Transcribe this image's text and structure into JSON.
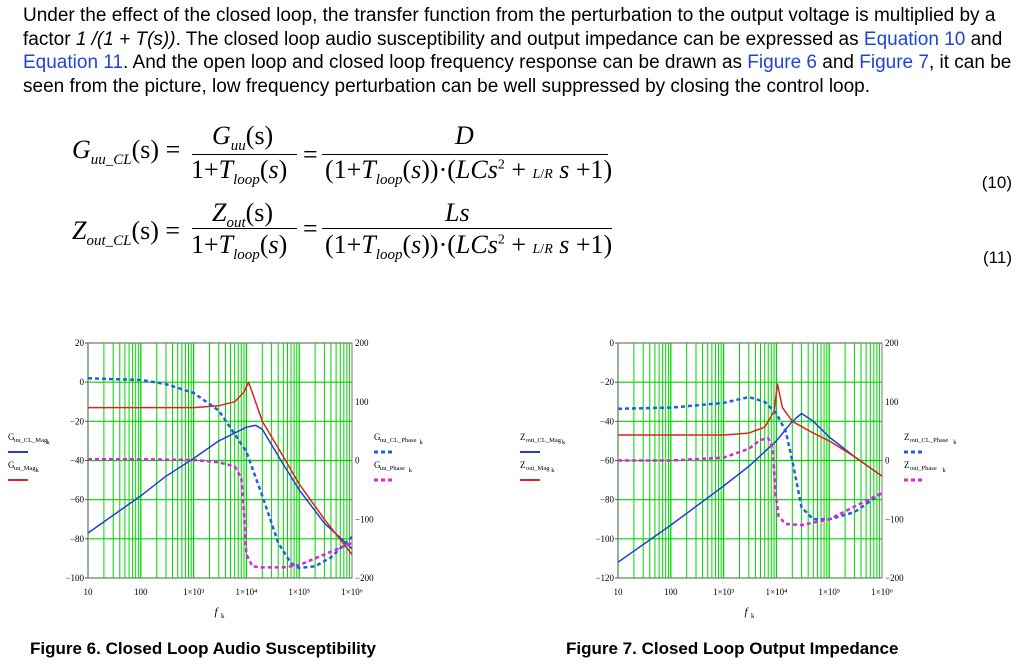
{
  "paragraph": {
    "p1": "Under the effect of the closed loop, the transfer function from the perturbation to the output voltage is multiplied by a factor ",
    "factor": "1 /(1 + T(s))",
    "p2": ". The closed loop audio susceptibility and output impedance can be expressed as ",
    "link_eq10": "Equation 10",
    "p3": " and ",
    "link_eq11": "Equation 11",
    "p4": ". And the open loop and closed loop frequency response can be drawn as ",
    "link_fig6": "Figure 6",
    "p5": " and ",
    "link_fig7": "Figure 7",
    "p6": ", it can be seen from the picture, low frequency perturbation can be well suppressed by closing the control loop."
  },
  "equations": [
    {
      "number": "(10)",
      "lhs": "G",
      "lhs_sub": "uu_CL",
      "arg": "(s) =",
      "num1_main": "G",
      "num1_sub": "uu",
      "num1_arg": "(s)",
      "num2": "D"
    },
    {
      "number": "(11)",
      "lhs": "Z",
      "lhs_sub": "out_CL",
      "arg": "(s) =",
      "num1_main": "Z",
      "num1_sub": "out",
      "num1_arg": "(s)",
      "num2": "Ls"
    }
  ],
  "figures": [
    {
      "caption": "Figure 6. Closed Loop Audio Susceptibility",
      "xlabel": "f",
      "xlabel_sub": "k",
      "left_legend": [
        "G",
        "uu_CL_Mag",
        "k",
        "G",
        "uu_Mag",
        "k"
      ],
      "right_legend": [
        "G",
        "uu_CL_Phase",
        "k",
        "G",
        "uu_Phase",
        "k"
      ],
      "colors": {
        "closed_loop": "#1f3fd6",
        "open_loop": "#e02020",
        "dashed_cl": "#1f5fe0",
        "dashed_ol": "#e020e0",
        "grid": "#00d400"
      }
    },
    {
      "caption": "Figure 7. Closed Loop Output Impedance",
      "xlabel": "f",
      "xlabel_sub": "k",
      "left_legend": [
        "Z",
        "out_CL_Mag",
        "k",
        "Z",
        "out_Mag",
        "k"
      ],
      "right_legend": [
        "Z",
        "out_CL_Phase",
        "k",
        "Z",
        "out_Phase",
        "k"
      ]
    }
  ],
  "chart_data": [
    {
      "type": "line",
      "xscale": "log",
      "xlim": [
        10,
        1000000
      ],
      "x_ticks": [
        "10",
        "100",
        "1×10³",
        "1×10⁴",
        "1×10⁵",
        "1×10⁶"
      ],
      "ylim_left": [
        -100,
        20
      ],
      "y_ticks_left": [
        "20",
        "0",
        "−20",
        "−40",
        "−60",
        "−80",
        "−100"
      ],
      "ylim_right": [
        -200,
        200
      ],
      "y_ticks_right": [
        "200",
        "100",
        "0",
        "−100",
        "−200"
      ],
      "grid": true,
      "series": [
        {
          "name": "Guu_CL_Mag",
          "axis": "left",
          "style": "solid",
          "color": "#1f3fd6",
          "x": [
            10,
            30,
            100,
            300,
            1000,
            3000,
            10000,
            15000,
            20000,
            50000,
            100000,
            300000,
            1000000
          ],
          "y": [
            -77,
            -68,
            -58,
            -48,
            -39,
            -30,
            -23,
            -22,
            -24,
            -42,
            -55,
            -72,
            -85
          ]
        },
        {
          "name": "Guu_Mag",
          "axis": "left",
          "style": "solid",
          "color": "#e02020",
          "x": [
            10,
            100,
            1000,
            3000,
            6000,
            9000,
            11000,
            14000,
            20000,
            50000,
            100000,
            300000,
            1000000
          ],
          "y": [
            -13,
            -13,
            -13,
            -12,
            -10,
            -5,
            0,
            -8,
            -20,
            -38,
            -52,
            -70,
            -88
          ]
        },
        {
          "name": "Guu_CL_Phase",
          "axis": "right",
          "style": "dash",
          "color": "#1f5fe0",
          "x": [
            10,
            100,
            300,
            1000,
            3000,
            6000,
            10000,
            20000,
            40000,
            70000,
            100000,
            200000,
            400000,
            1000000
          ],
          "y": [
            140,
            137,
            130,
            115,
            85,
            45,
            15,
            -60,
            -140,
            -175,
            -183,
            -180,
            -165,
            -130
          ]
        },
        {
          "name": "Guu_Phase",
          "axis": "right",
          "style": "dash",
          "color": "#e020e0",
          "x": [
            10,
            100,
            1000,
            3000,
            6000,
            8000,
            9000,
            10000,
            13000,
            20000,
            50000,
            100000,
            1000000
          ],
          "y": [
            2,
            2,
            1,
            -3,
            -10,
            -30,
            -90,
            -160,
            -180,
            -182,
            -182,
            -178,
            -140
          ]
        }
      ]
    },
    {
      "type": "line",
      "xscale": "log",
      "xlim": [
        10,
        1000000
      ],
      "x_ticks": [
        "10",
        "100",
        "1×10³",
        "1×10⁴",
        "1×10⁵",
        "1×10⁶"
      ],
      "ylim_left": [
        -120,
        0
      ],
      "y_ticks_left": [
        "0",
        "−20",
        "−40",
        "−60",
        "−80",
        "−100",
        "−120"
      ],
      "ylim_right": [
        -200,
        200
      ],
      "y_ticks_right": [
        "200",
        "100",
        "0",
        "−100",
        "−200"
      ],
      "grid": true,
      "series": [
        {
          "name": "Zout_CL_Mag",
          "axis": "left",
          "style": "solid",
          "color": "#1f3fd6",
          "x": [
            10,
            100,
            1000,
            3000,
            10000,
            20000,
            30000,
            50000,
            100000,
            300000,
            1000000
          ],
          "y": [
            -112,
            -93,
            -73,
            -63,
            -50,
            -40,
            -36,
            -40,
            -48,
            -58,
            -68
          ]
        },
        {
          "name": "Zout_Mag",
          "axis": "left",
          "style": "solid",
          "color": "#e02020",
          "x": [
            10,
            100,
            1000,
            3000,
            6000,
            9000,
            10500,
            13000,
            20000,
            50000,
            100000,
            300000,
            1000000
          ],
          "y": [
            -47,
            -47,
            -47,
            -46,
            -43,
            -35,
            -21,
            -33,
            -40,
            -46,
            -50,
            -58,
            -68
          ]
        },
        {
          "name": "Zout_CL_Phase",
          "axis": "right",
          "style": "dash",
          "color": "#1f5fe0",
          "x": [
            10,
            100,
            1000,
            3000,
            6000,
            10000,
            15000,
            20000,
            30000,
            50000,
            100000,
            300000,
            1000000
          ],
          "y": [
            88,
            90,
            98,
            108,
            100,
            80,
            50,
            0,
            -80,
            -100,
            -100,
            -88,
            -55
          ]
        },
        {
          "name": "Zout_Phase",
          "axis": "right",
          "style": "dash",
          "color": "#e020e0",
          "x": [
            10,
            100,
            1000,
            3000,
            5000,
            7000,
            8500,
            9500,
            11000,
            15000,
            30000,
            100000,
            1000000
          ],
          "y": [
            0,
            0,
            5,
            20,
            35,
            38,
            20,
            -50,
            -95,
            -108,
            -110,
            -100,
            -55
          ]
        }
      ]
    }
  ]
}
